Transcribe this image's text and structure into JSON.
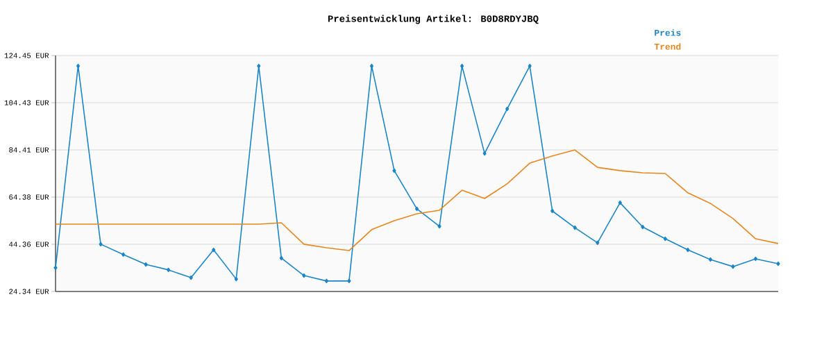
{
  "chart_data": {
    "type": "line",
    "title": "Preisentwicklung Artikel: B0D8RDYJBQ",
    "categories": [
      null,
      null,
      null,
      null,
      null,
      null,
      null,
      null,
      null,
      null,
      null,
      null,
      null,
      null,
      null,
      null,
      null,
      null,
      null,
      null,
      null,
      null,
      null,
      null,
      null,
      null,
      null,
      null,
      null,
      null,
      null,
      null,
      null
    ],
    "series": [
      {
        "name": "Preis",
        "color": "#1a86c8",
        "marker": "diamond",
        "values": [
          34.4,
          120,
          44.4,
          40,
          35.8,
          33.5,
          30.2,
          42,
          29.6,
          120,
          38.5,
          31.1,
          28.8,
          28.8,
          120,
          75.6,
          59.4,
          52,
          120,
          82.9,
          101.8,
          120,
          58.5,
          51.4,
          45,
          62,
          51.7,
          46.7,
          42,
          37.9,
          34.9,
          38.2,
          36.1
        ]
      },
      {
        "name": "Trend",
        "color": "#e8861a",
        "marker": "none",
        "values": [
          52.9,
          52.9,
          52.9,
          52.9,
          52.9,
          52.9,
          52.9,
          52.9,
          52.9,
          52.9,
          53.5,
          44.4,
          42.9,
          41.7,
          50.6,
          54.4,
          57.3,
          58.8,
          67.3,
          63.8,
          70,
          78.8,
          81.8,
          84.4,
          77,
          75.6,
          74.7,
          74.4,
          66.2,
          61.7,
          55.3,
          46.7,
          44.7
        ]
      }
    ],
    "ylim": [
      24.34,
      124.45
    ],
    "yticks": [
      {
        "value": 24.34,
        "label": "24.34 EUR"
      },
      {
        "value": 44.36,
        "label": "44.36 EUR"
      },
      {
        "value": 64.38,
        "label": "64.38 EUR"
      },
      {
        "value": 84.41,
        "label": "84.41 EUR"
      },
      {
        "value": 104.43,
        "label": "104.43 EUR"
      },
      {
        "value": 124.45,
        "label": "124.45 EUR"
      }
    ],
    "grid": "y",
    "tick_labels": "y"
  }
}
